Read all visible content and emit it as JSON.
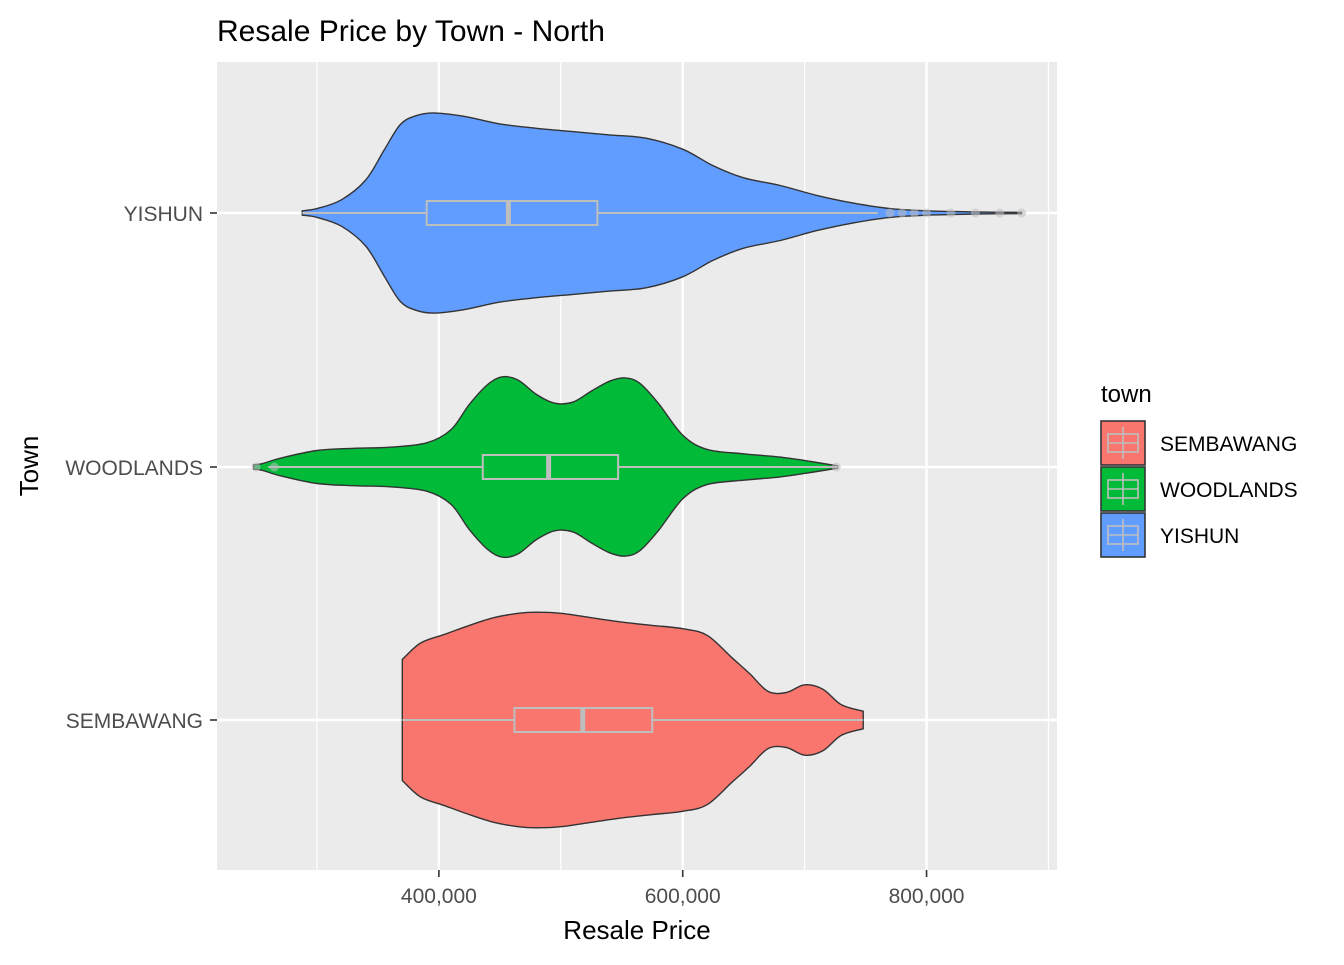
{
  "chart_data": {
    "type": "violin",
    "title": "Resale Price by Town - North",
    "xlabel": "Resale Price",
    "ylabel": "Town",
    "xlim": [
      218000,
      907000
    ],
    "x_ticks": [
      {
        "value": 400000,
        "label": "400,000"
      },
      {
        "value": 600000,
        "label": "600,000"
      },
      {
        "value": 800000,
        "label": "800,000"
      }
    ],
    "x_minor_ticks": [
      300000,
      500000,
      700000,
      900000
    ],
    "categories": [
      "SEMBAWANG",
      "WOODLANDS",
      "YISHUN"
    ],
    "grid": true,
    "legend": {
      "title": "town",
      "position": "right",
      "entries": [
        "SEMBAWANG",
        "WOODLANDS",
        "YISHUN"
      ]
    },
    "series": [
      {
        "name": "SEMBAWANG",
        "color": "#F8766D",
        "min": 370000,
        "q1": 462000,
        "median": 518000,
        "q3": 575000,
        "max": 748000,
        "outliers": [],
        "density": [
          [
            370000,
            0.55
          ],
          [
            385000,
            0.7
          ],
          [
            405000,
            0.78
          ],
          [
            425000,
            0.86
          ],
          [
            445000,
            0.93
          ],
          [
            465000,
            0.97
          ],
          [
            480000,
            0.98
          ],
          [
            500000,
            0.97
          ],
          [
            525000,
            0.93
          ],
          [
            550000,
            0.89
          ],
          [
            575000,
            0.86
          ],
          [
            600000,
            0.83
          ],
          [
            620000,
            0.77
          ],
          [
            640000,
            0.57
          ],
          [
            655000,
            0.42
          ],
          [
            670000,
            0.26
          ],
          [
            685000,
            0.25
          ],
          [
            700000,
            0.32
          ],
          [
            715000,
            0.28
          ],
          [
            730000,
            0.14
          ],
          [
            748000,
            0.08
          ]
        ]
      },
      {
        "name": "WOODLANDS",
        "color": "#00BA38",
        "min": 260000,
        "q1": 436000,
        "median": 490000,
        "q3": 547000,
        "max": 727000,
        "outliers": [
          250000,
          265000,
          726000
        ],
        "density": [
          [
            248000,
            0.02
          ],
          [
            255000,
            0.03
          ],
          [
            270000,
            0.08
          ],
          [
            300000,
            0.15
          ],
          [
            330000,
            0.17
          ],
          [
            360000,
            0.18
          ],
          [
            390000,
            0.22
          ],
          [
            410000,
            0.34
          ],
          [
            425000,
            0.57
          ],
          [
            440000,
            0.75
          ],
          [
            452000,
            0.82
          ],
          [
            465000,
            0.79
          ],
          [
            480000,
            0.66
          ],
          [
            495000,
            0.58
          ],
          [
            510000,
            0.59
          ],
          [
            525000,
            0.69
          ],
          [
            540000,
            0.78
          ],
          [
            553000,
            0.81
          ],
          [
            565000,
            0.76
          ],
          [
            580000,
            0.58
          ],
          [
            600000,
            0.29
          ],
          [
            620000,
            0.16
          ],
          [
            650000,
            0.12
          ],
          [
            680000,
            0.09
          ],
          [
            705000,
            0.05
          ],
          [
            727000,
            0.01
          ]
        ]
      },
      {
        "name": "YISHUN",
        "color": "#619CFF",
        "min": 288000,
        "q1": 390000,
        "median": 457000,
        "q3": 530000,
        "max": 760000,
        "outliers": [
          770000,
          780000,
          790000,
          800000,
          820000,
          840000,
          860000,
          878000
        ],
        "density": [
          [
            288000,
            0.02
          ],
          [
            300000,
            0.04
          ],
          [
            320000,
            0.12
          ],
          [
            340000,
            0.3
          ],
          [
            355000,
            0.57
          ],
          [
            368000,
            0.8
          ],
          [
            380000,
            0.88
          ],
          [
            395000,
            0.91
          ],
          [
            420000,
            0.88
          ],
          [
            450000,
            0.81
          ],
          [
            480000,
            0.77
          ],
          [
            510000,
            0.74
          ],
          [
            540000,
            0.71
          ],
          [
            570000,
            0.68
          ],
          [
            600000,
            0.58
          ],
          [
            625000,
            0.43
          ],
          [
            650000,
            0.32
          ],
          [
            680000,
            0.25
          ],
          [
            710000,
            0.16
          ],
          [
            740000,
            0.09
          ],
          [
            770000,
            0.04
          ],
          [
            800000,
            0.02
          ],
          [
            840000,
            0.01
          ],
          [
            878000,
            0.005
          ]
        ]
      }
    ]
  }
}
